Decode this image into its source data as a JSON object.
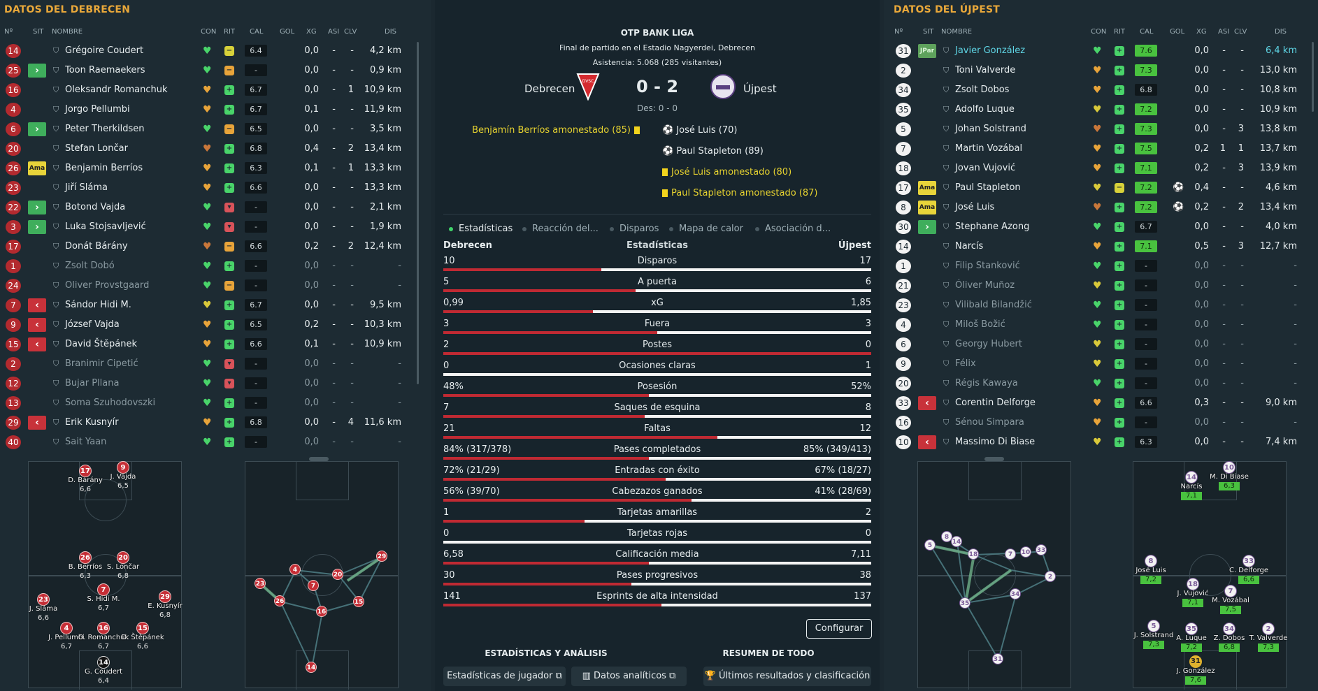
{
  "left": {
    "title": "DATOS DEL DEBRECEN",
    "headers": {
      "num": "Nº",
      "sit": "SIT",
      "name": "NOMBRE",
      "con": "CON",
      "rit": "RIT",
      "cal": "CAL",
      "gol": "GOL",
      "xg": "XG",
      "asi": "ASI",
      "clv": "CLV",
      "dis": "DIS"
    },
    "players": [
      {
        "num": "14",
        "sit": "",
        "name": "Grégoire Coudert",
        "con": "green",
        "rit": "yellow",
        "cal": "6.4",
        "xg": "0,0",
        "asi": "-",
        "clv": "-",
        "dis": "4,2 km"
      },
      {
        "num": "25",
        "sit": "in",
        "name": "Toon Raemaekers",
        "con": "green",
        "rit": "orange",
        "cal": "-",
        "xg": "0,0",
        "asi": "-",
        "clv": "-",
        "dis": "0,9 km"
      },
      {
        "num": "16",
        "sit": "",
        "name": "Oleksandr Romanchuk",
        "con": "orange",
        "rit": "green",
        "cal": "6.7",
        "xg": "0,0",
        "asi": "-",
        "clv": "1",
        "dis": "10,9 km"
      },
      {
        "num": "4",
        "sit": "",
        "name": "Jorgo Pellumbi",
        "con": "orange",
        "rit": "green",
        "cal": "6.7",
        "xg": "0,1",
        "asi": "-",
        "clv": "-",
        "dis": "11,9 km"
      },
      {
        "num": "6",
        "sit": "in",
        "name": "Peter Therkildsen",
        "con": "green",
        "rit": "orange",
        "cal": "6.5",
        "xg": "0,0",
        "asi": "-",
        "clv": "-",
        "dis": "3,5 km"
      },
      {
        "num": "20",
        "sit": "",
        "name": "Stefan Lončar",
        "con": "dorange",
        "rit": "green",
        "cal": "6.8",
        "xg": "0,4",
        "asi": "-",
        "clv": "2",
        "dis": "13,4 km"
      },
      {
        "num": "26",
        "sit": "ama",
        "name": "Benjamin Berríos",
        "con": "orange",
        "rit": "green",
        "cal": "6.3",
        "xg": "0,1",
        "asi": "-",
        "clv": "1",
        "dis": "13,3 km"
      },
      {
        "num": "23",
        "sit": "",
        "name": "Jiří Sláma",
        "con": "orange",
        "rit": "green",
        "cal": "6.6",
        "xg": "0,0",
        "asi": "-",
        "clv": "-",
        "dis": "13,3 km"
      },
      {
        "num": "22",
        "sit": "in",
        "name": "Botond Vajda",
        "con": "green",
        "rit": "red",
        "cal": "-",
        "xg": "0,0",
        "asi": "-",
        "clv": "-",
        "dis": "2,1 km"
      },
      {
        "num": "3",
        "sit": "in",
        "name": "Luka Stojsavljević",
        "con": "green",
        "rit": "red",
        "cal": "-",
        "xg": "0,0",
        "asi": "-",
        "clv": "-",
        "dis": "1,9 km"
      },
      {
        "num": "17",
        "sit": "",
        "name": "Donát Bárány",
        "con": "dorange",
        "rit": "orange",
        "cal": "6.6",
        "xg": "0,2",
        "asi": "-",
        "clv": "2",
        "dis": "12,4 km"
      },
      {
        "num": "1",
        "sit": "",
        "name": "Zsolt Dobó",
        "con": "green",
        "rit": "green",
        "cal": "-",
        "xg": "0,0",
        "asi": "-",
        "clv": "-",
        "dis": "-",
        "dim": true
      },
      {
        "num": "24",
        "sit": "",
        "name": "Oliver Provstgaard",
        "con": "green",
        "rit": "orange",
        "cal": "-",
        "xg": "0,0",
        "asi": "-",
        "clv": "-",
        "dis": "-",
        "dim": true
      },
      {
        "num": "7",
        "sit": "out",
        "name": "Sándor Hidi M.",
        "con": "yellow",
        "rit": "green",
        "cal": "6.7",
        "xg": "0,0",
        "asi": "-",
        "clv": "-",
        "dis": "9,5 km"
      },
      {
        "num": "9",
        "sit": "out",
        "name": "József Vajda",
        "con": "orange",
        "rit": "green",
        "cal": "6.5",
        "xg": "0,2",
        "asi": "-",
        "clv": "-",
        "dis": "10,3 km"
      },
      {
        "num": "15",
        "sit": "out",
        "name": "David Štěpánek",
        "con": "orange",
        "rit": "green",
        "cal": "6.6",
        "xg": "0,1",
        "asi": "-",
        "clv": "-",
        "dis": "10,9 km"
      },
      {
        "num": "2",
        "sit": "",
        "name": "Branimir Cipetić",
        "con": "green",
        "rit": "red",
        "cal": "-",
        "xg": "0,0",
        "asi": "-",
        "clv": "-",
        "dis": "-",
        "dim": true
      },
      {
        "num": "12",
        "sit": "",
        "name": "Bujar Pllana",
        "con": "green",
        "rit": "red",
        "cal": "-",
        "xg": "0,0",
        "asi": "-",
        "clv": "-",
        "dis": "-",
        "dim": true
      },
      {
        "num": "13",
        "sit": "",
        "name": "Soma Szuhodovszki",
        "con": "green",
        "rit": "green",
        "cal": "-",
        "xg": "0,0",
        "asi": "-",
        "clv": "-",
        "dis": "-",
        "dim": true
      },
      {
        "num": "29",
        "sit": "out",
        "name": "Erik Kusnyír",
        "con": "orange",
        "rit": "green",
        "cal": "6.8",
        "xg": "0,0",
        "asi": "-",
        "clv": "4",
        "dis": "11,6 km"
      },
      {
        "num": "40",
        "sit": "",
        "name": "Sait Yaan",
        "con": "green",
        "rit": "green",
        "cal": "-",
        "xg": "0,0",
        "asi": "-",
        "clv": "-",
        "dis": "-",
        "dim": true
      }
    ]
  },
  "right": {
    "title": "DATOS DEL ÚJPEST",
    "headers": {
      "num": "Nº",
      "sit": "SIT",
      "name": "NOMBRE",
      "con": "CON",
      "rit": "RIT",
      "cal": "CAL",
      "gol": "GOL",
      "xg": "XG",
      "asi": "ASI",
      "clv": "CLV",
      "dis": "DIS"
    },
    "players": [
      {
        "num": "31",
        "sit": "jpar",
        "name": "Javier González",
        "con": "green",
        "rit": "green",
        "cal": "7.6",
        "calg": true,
        "gol": "",
        "xg": "0,0",
        "asi": "-",
        "clv": "-",
        "dis": "6,4 km",
        "hl": true
      },
      {
        "num": "2",
        "sit": "",
        "name": "Toni Valverde",
        "con": "orange",
        "rit": "green",
        "cal": "7.3",
        "calg": true,
        "gol": "",
        "xg": "0,0",
        "asi": "-",
        "clv": "-",
        "dis": "13,0 km"
      },
      {
        "num": "34",
        "sit": "",
        "name": "Zsolt Dobos",
        "con": "orange",
        "rit": "green",
        "cal": "6.8",
        "gol": "",
        "xg": "0,0",
        "asi": "-",
        "clv": "-",
        "dis": "10,8 km"
      },
      {
        "num": "35",
        "sit": "",
        "name": "Adolfo Luque",
        "con": "yellow",
        "rit": "green",
        "cal": "7.2",
        "calg": true,
        "gol": "",
        "xg": "0,0",
        "asi": "-",
        "clv": "-",
        "dis": "10,9 km"
      },
      {
        "num": "5",
        "sit": "",
        "name": "Johan Solstrand",
        "con": "dorange",
        "rit": "green",
        "cal": "7.3",
        "calg": true,
        "gol": "",
        "xg": "0,0",
        "asi": "-",
        "clv": "3",
        "dis": "13,8 km"
      },
      {
        "num": "7",
        "sit": "",
        "name": "Martin Vozábal",
        "con": "orange",
        "rit": "green",
        "cal": "7.5",
        "calg": true,
        "gol": "",
        "xg": "0,2",
        "asi": "1",
        "clv": "1",
        "dis": "13,7 km"
      },
      {
        "num": "18",
        "sit": "",
        "name": "Jovan Vujović",
        "con": "orange",
        "rit": "green",
        "cal": "7.1",
        "calg": true,
        "gol": "",
        "xg": "0,2",
        "asi": "-",
        "clv": "3",
        "dis": "13,9 km"
      },
      {
        "num": "17",
        "sit": "ama",
        "name": "Paul Stapleton",
        "con": "yellow",
        "rit": "yellow",
        "cal": "7.2",
        "calg": true,
        "gol": "ball",
        "xg": "0,4",
        "asi": "-",
        "clv": "-",
        "dis": "4,6 km"
      },
      {
        "num": "8",
        "sit": "ama",
        "name": "José Luis",
        "con": "dorange",
        "rit": "green",
        "cal": "7.2",
        "calg": true,
        "gol": "ball",
        "xg": "0,2",
        "asi": "-",
        "clv": "2",
        "dis": "13,4 km"
      },
      {
        "num": "30",
        "sit": "in",
        "name": "Stephane Azong",
        "con": "green",
        "rit": "green",
        "cal": "6.7",
        "gol": "",
        "xg": "0,0",
        "asi": "-",
        "clv": "-",
        "dis": "4,0 km"
      },
      {
        "num": "14",
        "sit": "",
        "name": "Narcís",
        "con": "orange",
        "rit": "green",
        "cal": "7.1",
        "calg": true,
        "gol": "",
        "xg": "0,5",
        "asi": "-",
        "clv": "3",
        "dis": "12,7 km"
      },
      {
        "num": "1",
        "sit": "",
        "name": "Filip Stanković",
        "con": "green",
        "rit": "green",
        "cal": "-",
        "gol": "",
        "xg": "0,0",
        "asi": "-",
        "clv": "-",
        "dis": "-",
        "dim": true
      },
      {
        "num": "21",
        "sit": "",
        "name": "Óliver Muñoz",
        "con": "yellow",
        "rit": "green",
        "cal": "-",
        "gol": "",
        "xg": "0,0",
        "asi": "-",
        "clv": "-",
        "dis": "-",
        "dim": true
      },
      {
        "num": "23",
        "sit": "",
        "name": "Vilibald Bilandžić",
        "con": "green",
        "rit": "green",
        "cal": "-",
        "gol": "",
        "xg": "0,0",
        "asi": "-",
        "clv": "-",
        "dis": "-",
        "dim": true
      },
      {
        "num": "4",
        "sit": "",
        "name": "Miloš Božić",
        "con": "green",
        "rit": "green",
        "cal": "-",
        "gol": "",
        "xg": "0,0",
        "asi": "-",
        "clv": "-",
        "dis": "-",
        "dim": true
      },
      {
        "num": "6",
        "sit": "",
        "name": "Georgy Hubert",
        "con": "yellow",
        "rit": "green",
        "cal": "-",
        "gol": "",
        "xg": "0,0",
        "asi": "-",
        "clv": "-",
        "dis": "-",
        "dim": true
      },
      {
        "num": "9",
        "sit": "",
        "name": "Félix",
        "con": "yellow",
        "rit": "green",
        "cal": "-",
        "gol": "",
        "xg": "0,0",
        "asi": "-",
        "clv": "-",
        "dis": "-",
        "dim": true
      },
      {
        "num": "20",
        "sit": "",
        "name": "Régis Kawaya",
        "con": "green",
        "rit": "green",
        "cal": "-",
        "gol": "",
        "xg": "0,0",
        "asi": "-",
        "clv": "-",
        "dis": "-",
        "dim": true
      },
      {
        "num": "33",
        "sit": "out",
        "name": "Corentin Delforge",
        "con": "orange",
        "rit": "green",
        "cal": "6.6",
        "gol": "",
        "xg": "0,3",
        "asi": "-",
        "clv": "-",
        "dis": "9,0 km"
      },
      {
        "num": "16",
        "sit": "",
        "name": "Sénou Simpara",
        "con": "orange",
        "rit": "green",
        "cal": "-",
        "gol": "",
        "xg": "0,0",
        "asi": "-",
        "clv": "-",
        "dis": "-",
        "dim": true
      },
      {
        "num": "10",
        "sit": "out",
        "name": "Massimo Di Biase",
        "con": "yellow",
        "rit": "green",
        "cal": "6.3",
        "gol": "",
        "xg": "0,0",
        "asi": "-",
        "clv": "-",
        "dis": "7,4 km"
      }
    ]
  },
  "center": {
    "league": "OTP BANK LIGA",
    "venue": "Final de partido en el Estadio Nagyerdei, Debrecen",
    "attendance": "Asistencia: 5.068 (285 visitantes)",
    "home": "Debrecen",
    "away": "Újpest",
    "score": "0 - 2",
    "halftime": "Des: 0 - 0",
    "home_events": [
      "Benjamín Berríos amonestado (85)"
    ],
    "away_events": [
      "José Luis (70)",
      "Paul Stapleton (89)",
      "José Luis amonestado (80)",
      "Paul Stapleton amonestado (87)"
    ],
    "tabs": [
      "Estadísticas",
      "Reacción del...",
      "Disparos",
      "Mapa de calor",
      "Asociación d..."
    ],
    "stats_header": {
      "home": "Debrecen",
      "title": "Estadísticas",
      "away": "Újpest"
    },
    "stats": [
      {
        "label": "Disparos",
        "home": "10",
        "away": "17",
        "share": 0.37
      },
      {
        "label": "A puerta",
        "home": "5",
        "away": "6",
        "share": 0.45
      },
      {
        "label": "xG",
        "home": "0,99",
        "away": "1,85",
        "share": 0.35
      },
      {
        "label": "Fuera",
        "home": "3",
        "away": "3",
        "share": 0.5
      },
      {
        "label": "Postes",
        "home": "2",
        "away": "0",
        "share": 1.0
      },
      {
        "label": "Ocasiones claras",
        "home": "0",
        "away": "1",
        "share": 0.0
      },
      {
        "label": "Posesión",
        "home": "48%",
        "away": "52%",
        "share": 0.48
      },
      {
        "label": "Saques de esquina",
        "home": "7",
        "away": "8",
        "share": 0.47
      },
      {
        "label": "Faltas",
        "home": "21",
        "away": "12",
        "share": 0.64
      },
      {
        "label": "Pases completados",
        "home": "84% (317/378)",
        "away": "85% (349/413)",
        "share": 0.48
      },
      {
        "label": "Entradas con éxito",
        "home": "72% (21/29)",
        "away": "67% (18/27)",
        "share": 0.52
      },
      {
        "label": "Cabezazos ganados",
        "home": "56% (39/70)",
        "away": "41% (28/69)",
        "share": 0.58
      },
      {
        "label": "Tarjetas amarillas",
        "home": "1",
        "away": "2",
        "share": 0.33
      },
      {
        "label": "Tarjetas rojas",
        "home": "0",
        "away": "0",
        "share": 0.0
      },
      {
        "label": "Calificación media",
        "home": "6,58",
        "away": "7,11",
        "share": 0.48
      },
      {
        "label": "Pases progresivos",
        "home": "30",
        "away": "38",
        "share": 0.44
      },
      {
        "label": "Esprints de alta intensidad",
        "home": "141",
        "away": "137",
        "share": 0.51
      }
    ],
    "configure": "Configurar",
    "section1": "ESTADÍSTICAS Y ANÁLISIS",
    "section2": "RESUMEN DE TODO",
    "btn_player_stats": "Estadísticas de jugador",
    "btn_analytics": "Datos analíticos",
    "btn_results": "Últimos resultados y clasificación"
  },
  "left_lineup": [
    {
      "n": "17",
      "name": "D. Bárány",
      "r": "6,6"
    },
    {
      "n": "9",
      "name": "J. Vajda",
      "r": "6,5"
    },
    {
      "n": "26",
      "name": "B. Berríos",
      "r": "6,3"
    },
    {
      "n": "20",
      "name": "S. Lončar",
      "r": "6,8"
    },
    {
      "n": "7",
      "name": "S. Hidi M.",
      "r": "6,7"
    },
    {
      "n": "23",
      "name": "J. Sláma",
      "r": "6,6"
    },
    {
      "n": "29",
      "name": "E. Kusnyír",
      "r": "6,8"
    },
    {
      "n": "4",
      "name": "J. Pellumbi",
      "r": "6,7"
    },
    {
      "n": "16",
      "name": "O. Romanchuk",
      "r": "6,7"
    },
    {
      "n": "15",
      "name": "D. Štěpánek",
      "r": "6,6"
    },
    {
      "n": "14",
      "name": "G. Coudert",
      "r": "6,4"
    }
  ],
  "right_lineup": [
    {
      "n": "14",
      "name": "Narcís",
      "r": "7,1"
    },
    {
      "n": "10",
      "name": "M. Di Biase",
      "r": "6,3"
    },
    {
      "n": "8",
      "name": "José Luis",
      "r": "7,2"
    },
    {
      "n": "33",
      "name": "C. Delforge",
      "r": "6,6"
    },
    {
      "n": "18",
      "name": "J. Vujović",
      "r": "7,1"
    },
    {
      "n": "7",
      "name": "M. Vozábal",
      "r": "7,5"
    },
    {
      "n": "5",
      "name": "J. Solstrand",
      "r": "7,3"
    },
    {
      "n": "35",
      "name": "A. Luque",
      "r": "7,2"
    },
    {
      "n": "34",
      "name": "Z. Dobos",
      "r": "6,8"
    },
    {
      "n": "2",
      "name": "T. Valverde",
      "r": "7,3"
    },
    {
      "n": "31",
      "name": "J. González",
      "r": "7,6"
    }
  ],
  "left_network": [
    "23",
    "26",
    "4",
    "7",
    "20",
    "16",
    "15",
    "29",
    "14"
  ],
  "right_network": [
    "5",
    "8",
    "14",
    "18",
    "7",
    "10",
    "33",
    "2",
    "34",
    "35",
    "31"
  ],
  "colors": {
    "accent": "#e9a83a",
    "home_red": "#c02a33",
    "good": "#49c23f"
  }
}
